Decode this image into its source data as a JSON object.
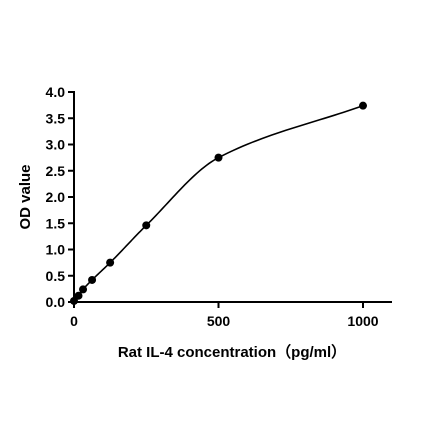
{
  "chart_data": {
    "type": "scatter",
    "title": "",
    "xlabel": "Rat IL-4 concentration（pg/ml）",
    "ylabel": "OD value",
    "xlim": [
      0,
      1000
    ],
    "ylim": [
      0,
      4.0
    ],
    "x_ticks": [
      0,
      500,
      1000
    ],
    "x_tick_labels": [
      "0",
      "500",
      "1000"
    ],
    "y_ticks": [
      0,
      0.5,
      1.0,
      1.5,
      2.0,
      2.5,
      3.0,
      3.5,
      4.0
    ],
    "y_tick_labels": [
      "0.0",
      "0.5",
      "1.0",
      "1.5",
      "2.0",
      "2.5",
      "3.0",
      "3.5",
      "4.0"
    ],
    "grid": false,
    "legend": "none",
    "series": [
      {
        "x": [
          0,
          15.6,
          31.25,
          62.5,
          125,
          250,
          500,
          1000
        ],
        "y": [
          0.02,
          0.12,
          0.24,
          0.42,
          0.75,
          1.46,
          2.75,
          3.74
        ],
        "color": "#000000",
        "fit_curve": true
      }
    ]
  }
}
